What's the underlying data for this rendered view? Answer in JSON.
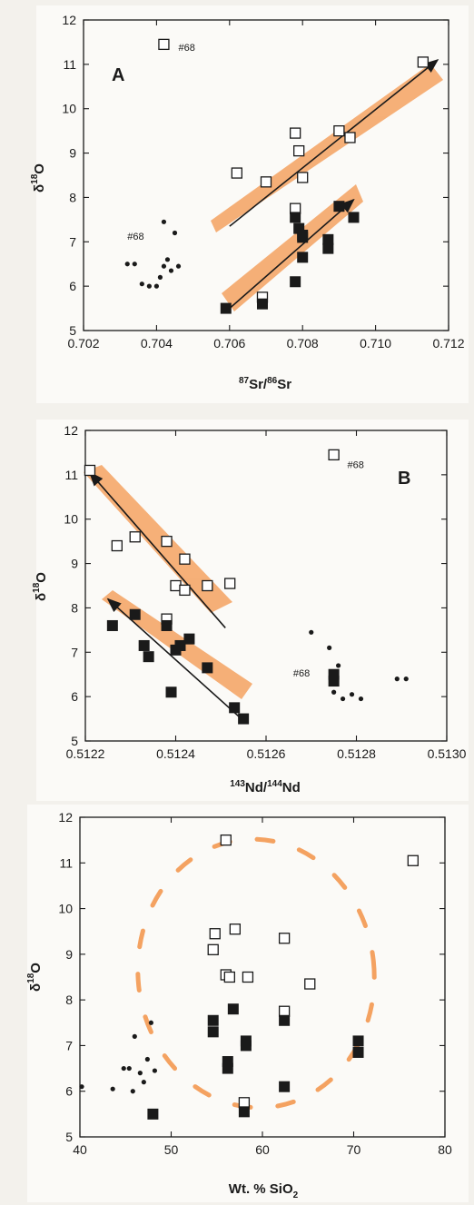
{
  "colors": {
    "highlight": "#f4a261",
    "marker": "#1a1a1a",
    "open_fill": "#ffffff"
  },
  "chart_data": [
    {
      "type": "scatter",
      "panel_label": "A",
      "xlabel_main": "Sr/",
      "xlabel_sup1": "87",
      "xlabel_sup2": "86",
      "xlabel_end": "Sr",
      "ylabel_main": "δ",
      "ylabel_sup": "18",
      "ylabel_end": "O",
      "xlim": [
        0.702,
        0.712
      ],
      "ylim": [
        5,
        12
      ],
      "xticks": [
        "0.702",
        "0.704",
        "0.706",
        "0.708",
        "0.710",
        "0.712"
      ],
      "yticks": [
        "5",
        "6",
        "7",
        "8",
        "9",
        "10",
        "11",
        "12"
      ],
      "grid": false,
      "series": [
        {
          "marker": "open-square",
          "x": [
            0.7042,
            0.7062,
            0.707,
            0.7078,
            0.7079,
            0.708,
            0.709,
            0.7093,
            0.7113,
            0.7069,
            0.7078
          ],
          "y": [
            11.45,
            8.55,
            8.35,
            9.45,
            9.05,
            8.45,
            9.5,
            9.35,
            11.05,
            5.75,
            7.75
          ]
        },
        {
          "marker": "filled-square",
          "x": [
            0.7059,
            0.7069,
            0.7078,
            0.7079,
            0.708,
            0.708,
            0.7078,
            0.708,
            0.7087,
            0.7087,
            0.709,
            0.7094
          ],
          "y": [
            5.5,
            5.6,
            7.55,
            7.3,
            7.1,
            6.65,
            6.1,
            7.15,
            7.05,
            6.85,
            7.8,
            7.55
          ]
        },
        {
          "marker": "dot",
          "x": [
            0.7032,
            0.7034,
            0.7036,
            0.7038,
            0.704,
            0.7041,
            0.7042,
            0.7043,
            0.7042,
            0.7045,
            0.7046,
            0.7044
          ],
          "y": [
            6.5,
            6.5,
            6.05,
            6.0,
            6.0,
            6.2,
            6.45,
            6.6,
            7.45,
            7.2,
            6.45,
            6.35
          ]
        }
      ],
      "annotations": [
        {
          "text": "#68",
          "x": 0.7046,
          "y": 11.3
        },
        {
          "text": "#68",
          "x": 0.7032,
          "y": 7.05
        }
      ],
      "trends": [
        {
          "x": [
            0.706,
            0.7117
          ],
          "y": [
            7.35,
            11.1
          ]
        },
        {
          "x": [
            0.706,
            0.7094
          ],
          "y": [
            5.5,
            7.95
          ]
        }
      ]
    },
    {
      "type": "scatter",
      "panel_label": "B",
      "xlabel_main": "Nd/",
      "xlabel_sup1": "143",
      "xlabel_sup2": "144",
      "xlabel_end": "Nd",
      "ylabel_main": "δ",
      "ylabel_sup": "18",
      "ylabel_end": "O",
      "xlim": [
        0.5122,
        0.513
      ],
      "ylim": [
        5,
        12
      ],
      "xticks": [
        "0.5122",
        "0.5124",
        "0.5126",
        "0.5128",
        "0.5130"
      ],
      "yticks": [
        "5",
        "6",
        "7",
        "8",
        "9",
        "10",
        "11",
        "12"
      ],
      "grid": false,
      "series": [
        {
          "marker": "open-square",
          "x": [
            0.51221,
            0.51227,
            0.51231,
            0.51238,
            0.5124,
            0.51242,
            0.51242,
            0.51247,
            0.51252,
            0.51238,
            0.51275
          ],
          "y": [
            11.1,
            9.4,
            9.6,
            9.5,
            8.5,
            9.1,
            8.4,
            8.5,
            8.55,
            7.75,
            11.45
          ]
        },
        {
          "marker": "filled-square",
          "x": [
            0.51226,
            0.51231,
            0.51233,
            0.51234,
            0.51238,
            0.51239,
            0.5124,
            0.51241,
            0.51243,
            0.51247,
            0.51253,
            0.51255,
            0.51275,
            0.51275
          ],
          "y": [
            7.6,
            7.85,
            7.15,
            6.9,
            7.6,
            6.1,
            7.05,
            7.15,
            7.3,
            6.65,
            5.75,
            5.5,
            6.5,
            6.35
          ]
        },
        {
          "marker": "dot",
          "x": [
            0.5127,
            0.51274,
            0.51276,
            0.51275,
            0.51277,
            0.51279,
            0.51281,
            0.51289,
            0.51291
          ],
          "y": [
            7.45,
            7.1,
            6.7,
            6.1,
            5.95,
            6.05,
            5.95,
            6.4,
            6.4
          ]
        }
      ],
      "annotations": [
        {
          "text": "#68",
          "x": 0.51278,
          "y": 11.15
        },
        {
          "text": "#68",
          "x": 0.51266,
          "y": 6.45
        }
      ],
      "trends": [
        {
          "x": [
            0.51251,
            0.51221
          ],
          "y": [
            7.55,
            11.05
          ]
        },
        {
          "x": [
            0.51254,
            0.51225
          ],
          "y": [
            5.55,
            8.2
          ]
        }
      ]
    },
    {
      "type": "scatter",
      "panel_label": "",
      "xlabel_main": "Wt. % SiO",
      "xlabel_sub": "2",
      "ylabel_main": "δ",
      "ylabel_sup": "18",
      "ylabel_end": "O",
      "xlim": [
        40,
        80
      ],
      "ylim": [
        5,
        12
      ],
      "xticks": [
        "40",
        "50",
        "60",
        "70",
        "80"
      ],
      "yticks": [
        "5",
        "6",
        "7",
        "8",
        "9",
        "10",
        "11",
        "12"
      ],
      "grid": false,
      "series": [
        {
          "marker": "open-square",
          "x": [
            56,
            54.8,
            54.6,
            57,
            56,
            56.4,
            58.4,
            62.4,
            65.2,
            62.4,
            58,
            76.5
          ],
          "y": [
            11.5,
            9.45,
            9.1,
            9.55,
            8.55,
            8.5,
            8.5,
            9.35,
            8.35,
            7.75,
            5.75,
            11.05
          ]
        },
        {
          "marker": "filled-square",
          "x": [
            54.6,
            54.6,
            56.8,
            56.2,
            56.2,
            58.2,
            58.2,
            62.4,
            62.4,
            70.5,
            70.5,
            48,
            58
          ],
          "y": [
            7.55,
            7.3,
            7.8,
            6.65,
            6.5,
            7.1,
            7.0,
            7.55,
            6.1,
            7.1,
            6.85,
            5.5,
            5.55
          ]
        },
        {
          "marker": "dot",
          "x": [
            40.2,
            43.6,
            44.8,
            45.4,
            46,
            46.6,
            47,
            47.4,
            47.8,
            48.2,
            45.8
          ],
          "y": [
            6.1,
            6.05,
            6.5,
            6.5,
            7.2,
            6.4,
            6.2,
            6.7,
            7.5,
            6.45,
            6.0
          ]
        }
      ],
      "annotations": [],
      "trends": []
    }
  ]
}
